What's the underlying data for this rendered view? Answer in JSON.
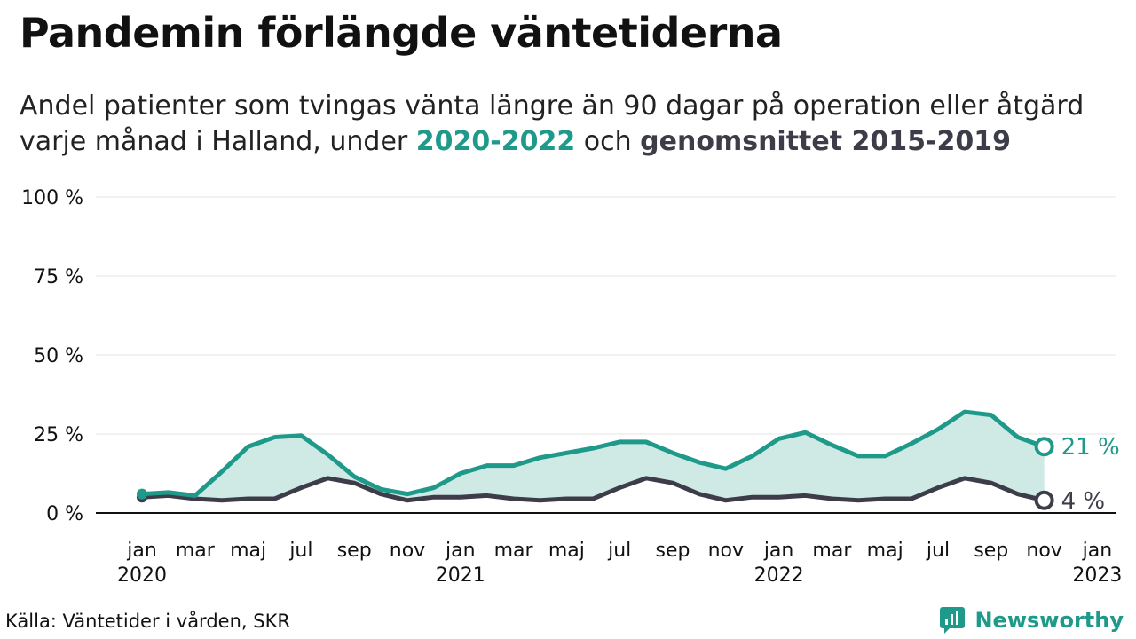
{
  "title": "Pandemin förlängde väntetiderna",
  "subtitle": {
    "line1": "Andel patienter som tvingas vänta längre än 90 dagar på operation eller åtgärd",
    "line2_prefix": "varje månad i Halland, under ",
    "highlight_a": "2020-2022",
    "line2_middle": " och ",
    "highlight_b": "genomsnittet 2015-2019"
  },
  "source": "Källa: Väntetider i vården, SKR",
  "brand": {
    "name": "Newsworthy",
    "icon": "newsworthy-logo-icon"
  },
  "colors": {
    "series_2020_2022": "#1f9a8a",
    "series_avg": "#3d3d4a",
    "fill": "#cfeae5",
    "grid": "#e6e6e6",
    "baseline": "#111111"
  },
  "chart_data": {
    "type": "line",
    "ylim": [
      0,
      100
    ],
    "yticks": [
      0,
      25,
      50,
      75,
      100
    ],
    "ytick_labels": [
      "0 %",
      "25 %",
      "50 %",
      "75 %",
      "100 %"
    ],
    "grid": true,
    "xtick_labels": [
      {
        "month": "jan",
        "year": "2020"
      },
      {
        "month": "mar",
        "year": ""
      },
      {
        "month": "maj",
        "year": ""
      },
      {
        "month": "jul",
        "year": ""
      },
      {
        "month": "sep",
        "year": ""
      },
      {
        "month": "nov",
        "year": ""
      },
      {
        "month": "jan",
        "year": "2021"
      },
      {
        "month": "mar",
        "year": ""
      },
      {
        "month": "maj",
        "year": ""
      },
      {
        "month": "jul",
        "year": ""
      },
      {
        "month": "sep",
        "year": ""
      },
      {
        "month": "nov",
        "year": ""
      },
      {
        "month": "jan",
        "year": "2022"
      },
      {
        "month": "mar",
        "year": ""
      },
      {
        "month": "maj",
        "year": ""
      },
      {
        "month": "jul",
        "year": ""
      },
      {
        "month": "sep",
        "year": ""
      },
      {
        "month": "nov",
        "year": ""
      },
      {
        "month": "jan",
        "year": "2023"
      }
    ],
    "x": [
      "2020-01",
      "2020-02",
      "2020-03",
      "2020-04",
      "2020-05",
      "2020-06",
      "2020-07",
      "2020-08",
      "2020-09",
      "2020-10",
      "2020-11",
      "2020-12",
      "2021-01",
      "2021-02",
      "2021-03",
      "2021-04",
      "2021-05",
      "2021-06",
      "2021-07",
      "2021-08",
      "2021-09",
      "2021-10",
      "2021-11",
      "2021-12",
      "2022-01",
      "2022-02",
      "2022-03",
      "2022-04",
      "2022-05",
      "2022-06",
      "2022-07",
      "2022-08",
      "2022-09",
      "2022-10",
      "2022-11"
    ],
    "series": [
      {
        "name": "2020-2022",
        "values": [
          6,
          6.5,
          5.5,
          13,
          21,
          24,
          24.5,
          18.5,
          11.5,
          7.5,
          6,
          8,
          12.5,
          15,
          15,
          17.5,
          19,
          20.5,
          22.5,
          22.5,
          19,
          16,
          14,
          18,
          23.5,
          25.5,
          21.5,
          18,
          18,
          22,
          26.5,
          32,
          31,
          24,
          21
        ],
        "end_label": "21 %"
      },
      {
        "name": "genomsnittet 2015-2019",
        "values": [
          5,
          5.5,
          4.5,
          4,
          4.5,
          4.5,
          8,
          11,
          9.5,
          6,
          4,
          5,
          5,
          5.5,
          4.5,
          4,
          4.5,
          4.5,
          8,
          11,
          9.5,
          6,
          4,
          5,
          5,
          5.5,
          4.5,
          4,
          4.5,
          4.5,
          8,
          11,
          9.5,
          6,
          4
        ],
        "end_label": "4 %"
      }
    ]
  }
}
